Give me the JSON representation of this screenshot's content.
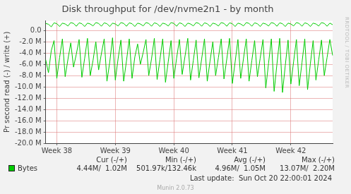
{
  "chart_data": {
    "type": "line",
    "title": "Disk throughput for /dev/nvme2n1 - by month",
    "y_label": "Pr second read (-) / write (+)",
    "categories": [
      null,
      null,
      null,
      null,
      "Week 38",
      null,
      null,
      null,
      null,
      null,
      null,
      null,
      null,
      null,
      null,
      null,
      null,
      null,
      null,
      null,
      null,
      null,
      null,
      null,
      null,
      "Week 39",
      null,
      null,
      null,
      null,
      null,
      null,
      null,
      null,
      null,
      null,
      null,
      null,
      null,
      null,
      null,
      null,
      null,
      null,
      null,
      null,
      "Week 40",
      null,
      null,
      null,
      null,
      null,
      null,
      null,
      null,
      null,
      null,
      null,
      null,
      null,
      null,
      null,
      null,
      null,
      null,
      null,
      null,
      "Week 41",
      null,
      null,
      null,
      null,
      null,
      null,
      null,
      null,
      null,
      null,
      null,
      null,
      null,
      null,
      null,
      null,
      null,
      null,
      null,
      null,
      "Week 42",
      null,
      null,
      null,
      null,
      null,
      null,
      null,
      null,
      null,
      null,
      null,
      null,
      null,
      null,
      null
    ],
    "series": [
      {
        "name": "Bytes",
        "color": "#00cc00",
        "values": [
          -5200000,
          -7500000,
          -3600000,
          -1800000,
          -8500000,
          -4800000,
          -1500000,
          -8200000,
          -5100000,
          -2200000,
          -6500000,
          -4200000,
          -1600000,
          -8300000,
          -4900000,
          -1400000,
          -8000000,
          -5300000,
          -2000000,
          -7000000,
          -4100000,
          -1500000,
          -9000000,
          -5600000,
          -1300000,
          -8800000,
          -5000000,
          -1700000,
          -9000000,
          -5400000,
          -1500000,
          -8500000,
          -4700000,
          -2400000,
          -6000000,
          -3900000,
          -1600000,
          -8000000,
          -5000000,
          -1400000,
          -8700000,
          -5200000,
          -1500000,
          -9200000,
          -5500000,
          -1800000,
          -8500000,
          -4900000,
          -1600000,
          -7800000,
          -4600000,
          -1400000,
          -8800000,
          -5300000,
          -1700000,
          -8400000,
          -5000000,
          -1500000,
          -9000000,
          -5400000,
          -2000000,
          -8000000,
          -4800000,
          -1500000,
          -8600000,
          -5100000,
          -1400000,
          -9400000,
          -5600000,
          -1600000,
          -8500000,
          -5000000,
          -1500000,
          -9000000,
          -5300000,
          -1800000,
          -8200000,
          -4900000,
          -1600000,
          -10200000,
          -5800000,
          -1500000,
          -10800000,
          -6000000,
          -1400000,
          -11000000,
          -6200000,
          -1700000,
          -9500000,
          -5500000,
          -1600000,
          -9800000,
          -5700000,
          -1500000,
          -10500000,
          -5900000,
          -1800000,
          -8800000,
          -5200000,
          -1700000,
          -8000000,
          -4800000,
          -1600000,
          -4440000
        ]
      },
      {
        "name": "Bytes",
        "color": "#00cc00",
        "values": [
          1250000,
          1100000,
          650000,
          1350000,
          1200000,
          700000,
          1300000,
          1150000,
          800000,
          1400000,
          1250000,
          750000,
          1350000,
          1200000,
          700000,
          1300000,
          1150000,
          800000,
          1400000,
          1250000,
          750000,
          1350000,
          1200000,
          700000,
          1300000,
          1150000,
          800000,
          1400000,
          1250000,
          750000,
          1350000,
          1200000,
          700000,
          1300000,
          1150000,
          800000,
          1400000,
          1250000,
          750000,
          1350000,
          1200000,
          700000,
          1300000,
          1150000,
          800000,
          1400000,
          1250000,
          750000,
          1350000,
          1200000,
          700000,
          1300000,
          1150000,
          800000,
          1400000,
          1250000,
          750000,
          1350000,
          1200000,
          700000,
          1300000,
          1150000,
          800000,
          1400000,
          1250000,
          750000,
          1350000,
          1200000,
          700000,
          1300000,
          1150000,
          800000,
          1400000,
          1250000,
          750000,
          1350000,
          1200000,
          700000,
          1300000,
          1150000,
          800000,
          1400000,
          1250000,
          750000,
          1350000,
          1200000,
          700000,
          1300000,
          1150000,
          800000,
          1400000,
          1250000,
          750000,
          1350000,
          1200000,
          700000,
          1300000,
          1150000,
          800000,
          1400000,
          1250000,
          750000,
          1300000,
          1020000
        ]
      }
    ],
    "ylim": [
      -20000000,
      1700000
    ],
    "yticks": [
      {
        "value": 0,
        "label": "0.0"
      },
      {
        "value": -2000000,
        "label": "-2.0 M"
      },
      {
        "value": -4000000,
        "label": "-4.0 M"
      },
      {
        "value": -6000000,
        "label": "-6.0 M"
      },
      {
        "value": -8000000,
        "label": "-8.0 M"
      },
      {
        "value": -10000000,
        "label": "-10.0 M"
      },
      {
        "value": -12000000,
        "label": "-12.0 M"
      },
      {
        "value": -14000000,
        "label": "-14.0 M"
      },
      {
        "value": -16000000,
        "label": "-16.0 M"
      },
      {
        "value": -18000000,
        "label": "-18.0 M"
      },
      {
        "value": -20000000,
        "label": "-20.0 M"
      }
    ],
    "grid": true,
    "stats": {
      "columns": [
        "Cur (-/+)",
        "Min (-/+)",
        "Avg (-/+)",
        "Max (-/+)"
      ],
      "rows": [
        {
          "name": "Bytes",
          "values": [
            "4.44M/  1.02M",
            "501.97k/132.46k",
            "4.96M/  1.05M",
            "13.07M/  2.20M"
          ]
        }
      ]
    },
    "footer": "Last update:  Sun Oct 20 22:00:01 2024",
    "credit": "Munin 2.0.73",
    "side_text": "RRDTOOL / TOBI OETIKER"
  }
}
